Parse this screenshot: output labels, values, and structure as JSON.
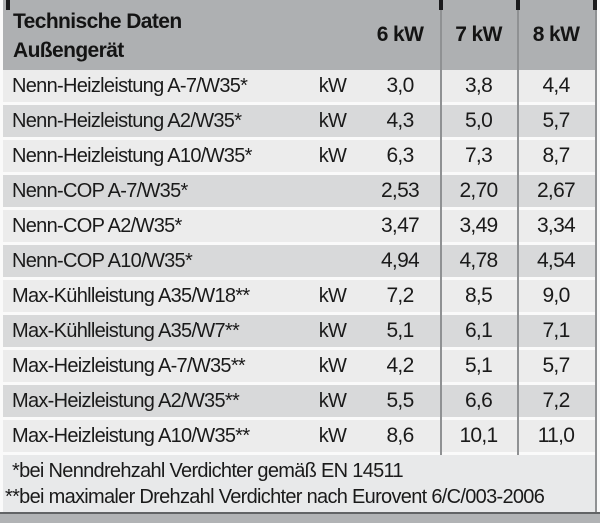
{
  "colors": {
    "header_bg": "#aeb0b2",
    "row_light": "#ececec",
    "row_dark": "#d8d9da",
    "divider": "#8f9193",
    "footnote_bg": "#e8e9ea",
    "bottom_band": "#b1b3b5",
    "text": "#1a1a1a"
  },
  "table": {
    "header": {
      "title_line1": "Technische Daten",
      "title_line2": "Außengerät",
      "columns": [
        "6 kW",
        "7 kW",
        "8 kW"
      ]
    },
    "rows": [
      {
        "label": "Nenn-Heizleistung A-7/W35*",
        "unit": "kW",
        "v6": "3,0",
        "v7": "3,8",
        "v8": "4,4"
      },
      {
        "label": "Nenn-Heizleistung A2/W35*",
        "unit": "kW",
        "v6": "4,3",
        "v7": "5,0",
        "v8": "5,7"
      },
      {
        "label": "Nenn-Heizleistung A10/W35*",
        "unit": "kW",
        "v6": "6,3",
        "v7": "7,3",
        "v8": "8,7"
      },
      {
        "label": "Nenn-COP A-7/W35*",
        "unit": "",
        "v6": "2,53",
        "v7": "2,70",
        "v8": "2,67"
      },
      {
        "label": "Nenn-COP A2/W35*",
        "unit": "",
        "v6": "3,47",
        "v7": "3,49",
        "v8": "3,34"
      },
      {
        "label": "Nenn-COP A10/W35*",
        "unit": "",
        "v6": "4,94",
        "v7": "4,78",
        "v8": "4,54"
      },
      {
        "label": "Max-Kühlleistung A35/W18**",
        "unit": "kW",
        "v6": "7,2",
        "v7": "8,5",
        "v8": "9,0"
      },
      {
        "label": "Max-Kühlleistung A35/W7**",
        "unit": "kW",
        "v6": "5,1",
        "v7": "6,1",
        "v8": "7,1"
      },
      {
        "label": "Max-Heizleistung A-7/W35**",
        "unit": "kW",
        "v6": "4,2",
        "v7": "5,1",
        "v8": "5,7"
      },
      {
        "label": "Max-Heizleistung A2/W35**",
        "unit": "kW",
        "v6": "5,5",
        "v7": "6,6",
        "v8": "7,2"
      },
      {
        "label": "Max-Heizleistung A10/W35**",
        "unit": "kW",
        "v6": "8,6",
        "v7": "10,1",
        "v8": "11,0"
      }
    ],
    "footnotes": [
      "*bei Nenndrehzahl Verdichter gemäß EN 14511",
      "**bei maximaler Drehzahl Verdichter nach Eurovent 6/C/003-2006"
    ]
  }
}
